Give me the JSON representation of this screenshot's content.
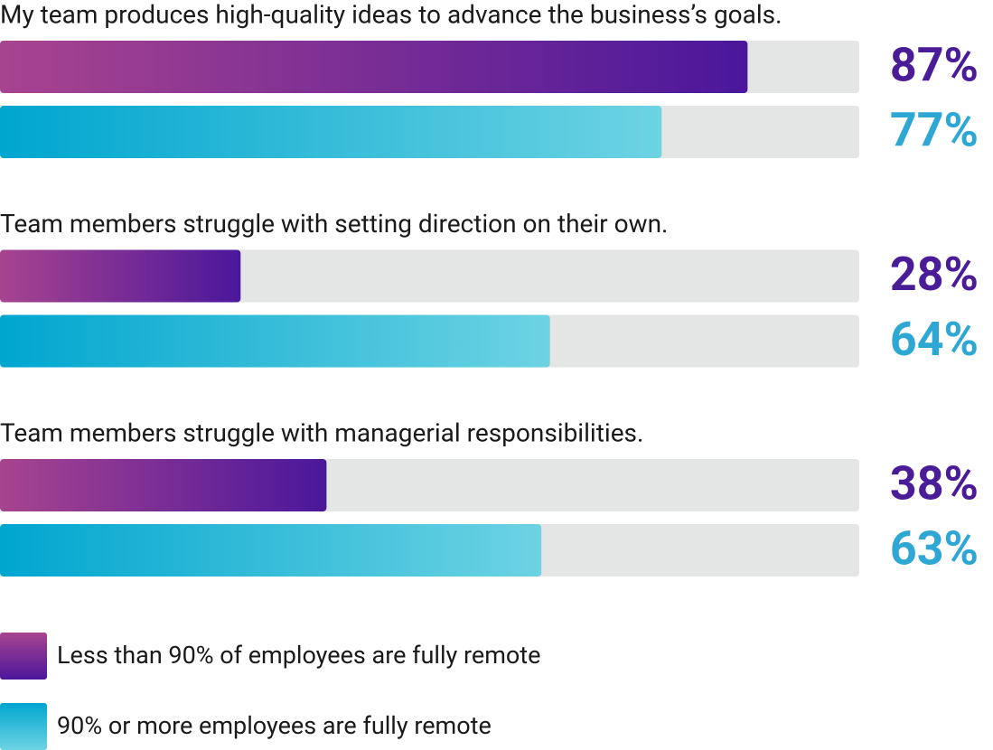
{
  "chart_data": {
    "type": "bar",
    "orientation": "horizontal",
    "categories": [
      "My team produces high-quality ideas to advance the business’s goals.",
      "Team members struggle with setting direction on their own.",
      "Team members struggle with managerial responsibilities."
    ],
    "series": [
      {
        "name": "Less than 90% of employees are fully remote",
        "color": "#4a1c98",
        "gradient": [
          "#a8448f",
          "#4a179b"
        ],
        "values": [
          87,
          28,
          38
        ],
        "value_labels": [
          "87%",
          "28%",
          "38%"
        ]
      },
      {
        "name": "90% or more employees are fully remote",
        "color": "#2ea7d4",
        "gradient": [
          "#00a6cf",
          "#6dd3e3"
        ],
        "values": [
          77,
          64,
          63
        ],
        "value_labels": [
          "77%",
          "64%",
          "63%"
        ]
      }
    ],
    "xlim": [
      0,
      100
    ],
    "track_color": "#e4e5e5"
  }
}
